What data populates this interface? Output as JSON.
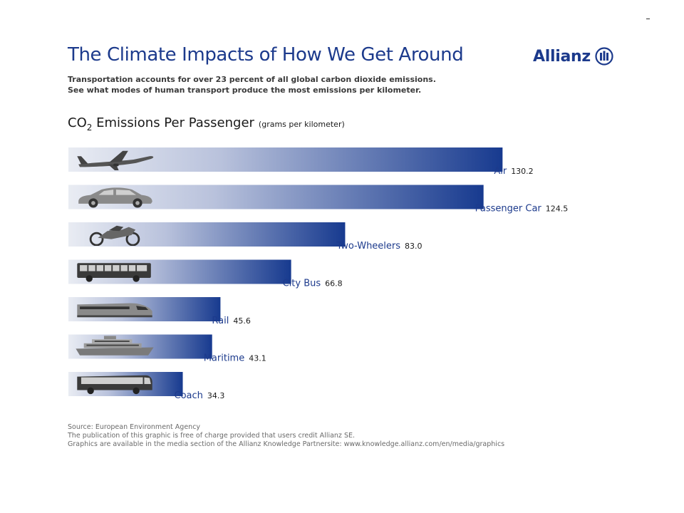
{
  "header": {
    "title": "The Climate Impacts of How We Get Around",
    "logo_text": "Allianz",
    "subtitle_lines": [
      "Transportation accounts for over 23 percent of all global carbon dioxide emissions.",
      "See what modes of human transport produce the most emissions per kilometer."
    ]
  },
  "chart_heading": {
    "prefix": "CO",
    "subscript": "2",
    "main": " Emissions Per Passenger",
    "unit": "(grams per kilometer)"
  },
  "colors": {
    "brand_blue": "#1c3a8c",
    "bar_dark": "#173a8f",
    "bar_light": "#e9ecf3"
  },
  "chart_data": {
    "type": "bar",
    "orientation": "horizontal",
    "title": "CO2 Emissions Per Passenger",
    "xlabel": "grams per kilometer",
    "ylabel": "",
    "categories": [
      "Air",
      "Passenger Car",
      "Two-Wheelers",
      "City Bus",
      "Rail",
      "Maritime",
      "Coach"
    ],
    "values": [
      130.2,
      124.5,
      83.0,
      66.8,
      45.6,
      43.1,
      34.3
    ],
    "value_labels": [
      "130.2",
      "124.5",
      "83.0",
      "66.8",
      "45.6",
      "43.1",
      "34.3"
    ],
    "icons": [
      "airplane-icon",
      "car-icon",
      "motorcycle-icon",
      "bus-icon",
      "train-icon",
      "ship-icon",
      "coach-icon"
    ],
    "grid": false,
    "legend": "none"
  },
  "footer": {
    "lines": [
      "Source: European Environment Agency",
      "The publication of this graphic is free of charge provided that users credit Allianz SE.",
      "Graphics are available in the media section of the Allianz Knowledge Partnersite: www.knowledge.allianz.com/en/media/graphics"
    ]
  }
}
